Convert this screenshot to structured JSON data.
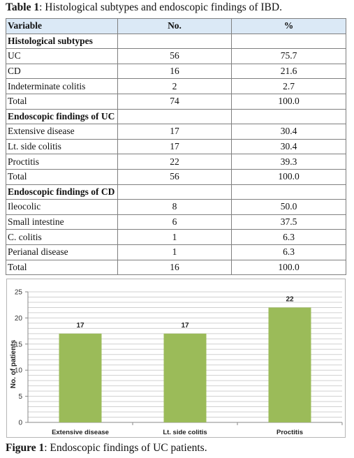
{
  "table": {
    "caption_label": "Table 1",
    "caption_text": ": Histological subtypes and endoscopic findings of IBD.",
    "headers": [
      "Variable",
      "No.",
      "%"
    ],
    "sections": [
      {
        "title": "Histological subtypes",
        "rows": [
          {
            "variable": "UC",
            "no": "56",
            "pct": "75.7"
          },
          {
            "variable": "CD",
            "no": "16",
            "pct": "21.6"
          },
          {
            "variable": "Indeterminate colitis",
            "no": "2",
            "pct": "2.7"
          },
          {
            "variable": "Total",
            "no": "74",
            "pct": "100.0"
          }
        ]
      },
      {
        "title": "Endoscopic findings of UC",
        "rows": [
          {
            "variable": "Extensive disease",
            "no": "17",
            "pct": "30.4"
          },
          {
            "variable": "Lt. side colitis",
            "no": "17",
            "pct": "30.4"
          },
          {
            "variable": "Proctitis",
            "no": "22",
            "pct": "39.3"
          },
          {
            "variable": "Total",
            "no": "56",
            "pct": "100.0"
          }
        ]
      },
      {
        "title": "Endoscopic findings of CD",
        "rows": [
          {
            "variable": "Ileocolic",
            "no": "8",
            "pct": "50.0"
          },
          {
            "variable": "Small intestine",
            "no": "6",
            "pct": "37.5"
          },
          {
            "variable": "C. colitis",
            "no": "1",
            "pct": "6.3"
          },
          {
            "variable": "Perianal disease",
            "no": "1",
            "pct": "6.3"
          },
          {
            "variable": "Total",
            "no": "16",
            "pct": "100.0"
          }
        ]
      }
    ]
  },
  "chart_data": {
    "type": "bar",
    "categories": [
      "Extensive disease",
      "Lt. side colitis",
      "Proctitis"
    ],
    "values": [
      17,
      17,
      22
    ],
    "data_labels": [
      "17",
      "17",
      "22"
    ],
    "ylabel": "No. of patients",
    "xlabel": "",
    "ylim": [
      0,
      25
    ],
    "yticks": [
      0,
      5,
      10,
      15,
      20,
      25
    ],
    "grid": true,
    "bar_color": "#9bbb59",
    "grid_color": "#d0d0d0"
  },
  "figure": {
    "caption_label": "Figure 1",
    "caption_text": ": Endoscopic findings of UC patients."
  }
}
